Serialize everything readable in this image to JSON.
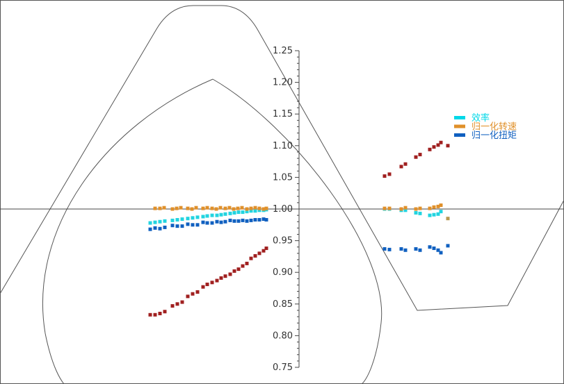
{
  "chart_data": {
    "type": "scatter",
    "title": "",
    "xlabel": "",
    "ylabel": "",
    "ylim": [
      0.75,
      1.25
    ],
    "y_ticks": [
      "0.75",
      "0.80",
      "0.85",
      "0.90",
      "0.95",
      "1.00",
      "1.05",
      "1.10",
      "1.15",
      "1.20",
      "1.25"
    ],
    "grid": false,
    "legend_position": "right",
    "legend": [
      {
        "label": "效率",
        "color": "#00D8E8"
      },
      {
        "label": "归一化转速",
        "color": "#E0902A"
      },
      {
        "label": "归一化扭矩",
        "color": "#1060C0"
      }
    ],
    "series": [
      {
        "name": "效率",
        "color": "#22D4E0",
        "points": [
          [
            216,
            0.978
          ],
          [
            223,
            0.979
          ],
          [
            230,
            0.98
          ],
          [
            237,
            0.981
          ],
          [
            248,
            0.982
          ],
          [
            255,
            0.983
          ],
          [
            262,
            0.984
          ],
          [
            270,
            0.985
          ],
          [
            277,
            0.986
          ],
          [
            284,
            0.987
          ],
          [
            292,
            0.988
          ],
          [
            298,
            0.989
          ],
          [
            305,
            0.99
          ],
          [
            312,
            0.99
          ],
          [
            318,
            0.991
          ],
          [
            324,
            0.992
          ],
          [
            331,
            0.993
          ],
          [
            337,
            0.994
          ],
          [
            343,
            0.995
          ],
          [
            349,
            0.995
          ],
          [
            355,
            0.996
          ],
          [
            361,
            0.997
          ],
          [
            367,
            0.997
          ],
          [
            373,
            0.998
          ],
          [
            379,
            0.998
          ],
          [
            383,
            0.999
          ],
          [
            553,
            1.0
          ],
          [
            560,
            1.0
          ],
          [
            577,
            0.998
          ],
          [
            583,
            0.998
          ],
          [
            598,
            0.994
          ],
          [
            604,
            0.993
          ],
          [
            618,
            0.99
          ],
          [
            624,
            0.991
          ],
          [
            630,
            0.992
          ],
          [
            634,
            0.996
          ]
        ]
      },
      {
        "name": "归一化转速",
        "color": "#E0902A",
        "points": [
          [
            223,
            1.001
          ],
          [
            230,
            1.001
          ],
          [
            236,
            1.002
          ],
          [
            248,
            1.0
          ],
          [
            254,
            1.001
          ],
          [
            260,
            1.002
          ],
          [
            270,
            1.001
          ],
          [
            276,
            1.0
          ],
          [
            282,
            1.002
          ],
          [
            292,
            1.001
          ],
          [
            298,
            1.002
          ],
          [
            305,
            1.001
          ],
          [
            311,
            1.0
          ],
          [
            317,
            1.002
          ],
          [
            324,
            1.001
          ],
          [
            330,
            1.002
          ],
          [
            336,
            1.0
          ],
          [
            342,
            1.001
          ],
          [
            348,
            1.002
          ],
          [
            355,
            1.0
          ],
          [
            361,
            1.001
          ],
          [
            367,
            1.002
          ],
          [
            373,
            1.001
          ],
          [
            379,
            1.0
          ],
          [
            383,
            1.001
          ],
          [
            553,
            1.001
          ],
          [
            560,
            1.001
          ],
          [
            577,
            1.0
          ],
          [
            583,
            1.002
          ],
          [
            598,
            1.0
          ],
          [
            604,
            1.001
          ],
          [
            618,
            1.001
          ],
          [
            624,
            1.003
          ],
          [
            630,
            1.004
          ],
          [
            634,
            1.006
          ]
        ]
      },
      {
        "name": "归一化扭矩",
        "color": "#1060C0",
        "points": [
          [
            216,
            0.968
          ],
          [
            223,
            0.97
          ],
          [
            230,
            0.969
          ],
          [
            237,
            0.971
          ],
          [
            248,
            0.974
          ],
          [
            255,
            0.973
          ],
          [
            262,
            0.973
          ],
          [
            270,
            0.976
          ],
          [
            277,
            0.975
          ],
          [
            284,
            0.975
          ],
          [
            292,
            0.979
          ],
          [
            298,
            0.978
          ],
          [
            305,
            0.978
          ],
          [
            312,
            0.98
          ],
          [
            318,
            0.979
          ],
          [
            324,
            0.98
          ],
          [
            331,
            0.982
          ],
          [
            337,
            0.981
          ],
          [
            343,
            0.981
          ],
          [
            349,
            0.982
          ],
          [
            355,
            0.981
          ],
          [
            361,
            0.982
          ],
          [
            367,
            0.983
          ],
          [
            373,
            0.983
          ],
          [
            379,
            0.984
          ],
          [
            383,
            0.983
          ],
          [
            553,
            0.937
          ],
          [
            560,
            0.936
          ],
          [
            577,
            0.937
          ],
          [
            583,
            0.935
          ],
          [
            598,
            0.937
          ],
          [
            604,
            0.935
          ],
          [
            618,
            0.94
          ],
          [
            624,
            0.938
          ],
          [
            630,
            0.935
          ],
          [
            634,
            0.931
          ],
          [
            644,
            0.942
          ]
        ]
      },
      {
        "name": "",
        "color": "#A02020",
        "points": [
          [
            216,
            0.833
          ],
          [
            223,
            0.833
          ],
          [
            230,
            0.835
          ],
          [
            237,
            0.838
          ],
          [
            248,
            0.847
          ],
          [
            255,
            0.85
          ],
          [
            262,
            0.853
          ],
          [
            270,
            0.862
          ],
          [
            277,
            0.866
          ],
          [
            284,
            0.869
          ],
          [
            292,
            0.877
          ],
          [
            298,
            0.881
          ],
          [
            305,
            0.884
          ],
          [
            312,
            0.887
          ],
          [
            318,
            0.891
          ],
          [
            324,
            0.894
          ],
          [
            331,
            0.897
          ],
          [
            337,
            0.902
          ],
          [
            343,
            0.905
          ],
          [
            349,
            0.91
          ],
          [
            355,
            0.914
          ],
          [
            361,
            0.922
          ],
          [
            367,
            0.926
          ],
          [
            373,
            0.93
          ],
          [
            379,
            0.934
          ],
          [
            383,
            0.938
          ],
          [
            553,
            1.052
          ],
          [
            560,
            1.055
          ],
          [
            577,
            1.067
          ],
          [
            583,
            1.071
          ],
          [
            598,
            1.082
          ],
          [
            604,
            1.086
          ],
          [
            618,
            1.094
          ],
          [
            624,
            1.098
          ],
          [
            630,
            1.101
          ],
          [
            634,
            1.105
          ],
          [
            644,
            1.1
          ]
        ]
      },
      {
        "name": "",
        "color": "#B89A50",
        "points": [
          [
            644,
            0.985
          ]
        ]
      }
    ]
  }
}
